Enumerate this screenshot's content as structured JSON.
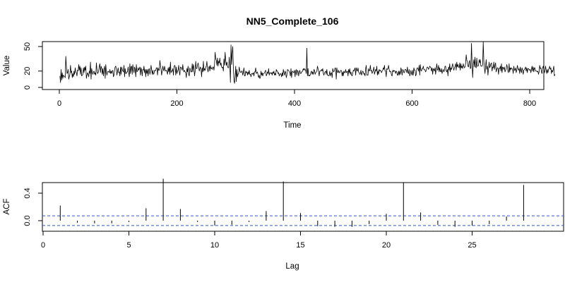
{
  "figure": {
    "title": "NN5_Complete_106"
  },
  "chart_data": [
    {
      "type": "line",
      "title": "NN5_Complete_106",
      "xlabel": "Time",
      "ylabel": "Value",
      "xlim": [
        1,
        791
      ],
      "ylim": [
        0,
        55
      ],
      "x_ticks": [
        0,
        200,
        400,
        600,
        800
      ],
      "y_ticks": [
        0,
        20,
        50
      ],
      "x_tick_labels": [
        "0",
        "200",
        "400",
        "600",
        "800"
      ],
      "y_tick_labels": [
        "0",
        "20",
        "50"
      ],
      "grid": false,
      "series": [
        {
          "x_start": 1,
          "x_step": 1,
          "values": [
            14,
            6,
            22,
            9,
            18,
            11,
            15,
            14,
            13,
            12,
            38,
            26,
            17,
            18,
            22,
            10,
            13,
            16,
            27,
            18,
            20,
            12,
            17,
            13,
            20,
            16,
            24,
            19,
            18,
            14,
            21,
            20,
            28,
            21,
            26,
            16,
            24,
            14,
            15,
            16,
            24,
            18,
            25,
            21,
            26,
            11,
            15,
            18,
            16,
            13,
            20,
            17,
            31,
            10,
            23,
            19,
            16,
            19,
            20,
            16,
            18,
            15,
            30,
            22,
            17,
            18,
            21,
            26,
            29,
            18,
            26,
            24,
            16,
            23,
            14,
            22,
            26,
            11,
            28,
            19,
            15,
            19,
            20,
            19,
            18,
            22,
            17,
            20,
            17,
            20,
            21,
            13,
            15,
            22,
            25,
            26,
            22,
            15,
            20,
            24,
            18,
            19,
            14,
            25,
            16,
            25,
            22,
            20,
            19,
            27,
            13,
            23,
            17,
            17,
            19,
            19,
            25,
            18,
            13,
            29,
            17,
            25,
            26,
            16,
            28,
            22,
            18,
            25,
            22,
            13,
            28,
            19,
            20,
            24,
            21,
            23,
            25,
            15,
            24,
            21,
            14,
            22,
            21,
            26,
            18,
            22,
            13,
            22,
            17,
            22,
            14,
            22,
            23,
            16,
            19,
            27,
            22,
            16,
            21,
            16,
            17,
            21,
            20,
            21,
            24,
            24,
            15,
            24,
            21,
            21,
            33,
            27,
            22,
            15,
            20,
            26,
            22,
            20,
            26,
            22,
            20,
            21,
            19,
            16,
            24,
            19,
            25,
            16,
            31,
            18,
            20,
            20,
            23,
            15,
            25,
            27,
            26,
            15,
            25,
            17,
            20,
            21,
            27,
            19,
            15,
            25,
            24,
            24,
            21,
            28,
            21,
            19,
            21,
            19,
            18,
            12,
            23,
            19,
            26,
            16,
            14,
            24,
            21,
            19,
            19,
            29,
            19,
            28,
            24,
            14,
            20,
            32,
            23,
            23,
            27,
            30,
            26,
            20,
            23,
            25,
            22,
            13,
            24,
            19,
            32,
            20,
            23,
            21,
            25,
            26,
            32,
            22,
            19,
            24,
            26,
            20,
            27,
            23,
            24,
            22,
            25,
            25,
            21,
            29,
            43,
            35,
            33,
            27,
            36,
            26,
            32,
            30,
            36,
            27,
            30,
            25,
            24,
            25,
            20,
            35,
            27,
            43,
            33,
            27,
            31,
            26,
            24,
            24,
            37,
            26,
            6,
            52,
            28,
            42,
            50,
            24,
            8,
            5,
            14,
            26,
            7,
            22,
            13,
            16,
            17,
            25,
            20,
            19,
            18,
            20,
            20,
            15,
            19,
            24,
            14,
            14,
            20,
            18,
            19,
            15,
            19,
            16,
            21,
            16,
            16,
            13,
            17,
            17,
            16,
            18,
            14,
            19,
            19,
            24,
            17,
            18,
            19,
            15,
            12,
            15,
            11,
            12,
            20,
            15,
            18,
            14,
            17,
            17,
            18,
            20,
            21,
            14,
            16,
            19,
            17,
            23,
            15,
            18,
            18,
            17,
            18,
            15,
            19,
            17,
            20,
            15,
            17,
            15,
            22,
            20,
            20,
            17,
            18,
            14,
            16,
            17,
            16,
            13,
            18,
            14,
            22,
            18,
            15,
            20,
            18,
            12,
            15,
            22,
            21,
            21,
            19,
            18,
            14,
            23,
            12,
            19,
            20,
            18,
            18,
            21,
            13,
            20,
            22,
            15,
            21,
            20,
            14,
            18,
            21,
            17,
            17,
            19,
            19,
            21,
            23,
            21,
            23,
            22,
            21,
            17,
            48,
            14,
            23,
            14,
            15,
            14,
            16,
            19,
            20,
            16,
            19,
            16,
            22,
            21,
            16,
            18,
            19,
            20,
            26,
            23,
            19,
            14,
            20,
            20,
            20,
            22,
            20,
            23,
            17,
            15,
            18,
            19,
            20,
            16,
            22,
            15,
            15,
            14,
            15,
            20,
            14,
            17,
            18,
            12,
            23,
            20,
            19,
            21,
            24,
            23,
            10,
            24,
            19,
            18,
            21,
            18,
            18,
            20,
            21,
            20,
            14,
            19,
            14,
            20,
            18,
            18,
            22,
            18,
            19,
            20,
            14,
            22,
            18,
            23,
            16,
            19,
            15,
            14,
            17,
            21,
            20,
            22,
            24,
            15,
            24,
            21,
            20,
            24,
            19,
            18,
            16,
            17,
            21,
            15,
            17,
            20,
            19,
            16,
            17,
            14,
            23,
            27,
            15,
            15,
            15,
            23,
            20,
            21,
            27,
            20,
            21,
            17,
            19,
            21,
            25,
            16,
            19,
            22,
            20,
            26,
            15,
            20,
            16,
            22,
            20,
            21,
            20,
            18,
            20,
            21,
            24,
            22,
            27,
            20,
            20,
            13,
            23,
            22,
            23,
            27,
            22,
            19,
            20,
            19,
            15,
            14,
            21,
            19,
            21,
            20,
            20,
            17,
            20,
            19,
            15,
            15,
            20,
            15,
            20,
            16,
            24,
            21,
            15,
            22,
            21,
            18,
            18,
            22,
            22,
            21,
            18,
            25,
            18,
            17,
            22,
            14,
            17,
            21,
            17,
            15,
            21,
            15,
            24,
            21,
            21,
            14,
            16,
            23,
            24,
            23,
            20,
            27,
            15,
            28,
            21,
            20,
            23,
            23,
            26,
            22,
            22,
            21,
            19,
            21,
            24,
            25,
            24,
            22,
            24,
            26,
            25,
            24,
            20,
            24,
            16,
            23,
            22,
            20,
            24,
            16,
            23,
            29,
            21,
            22,
            27,
            19,
            24,
            20,
            19,
            23,
            17,
            20,
            22,
            19,
            21,
            26,
            26,
            20,
            19,
            22,
            14,
            25,
            21,
            29,
            19,
            24,
            22,
            26,
            29,
            24,
            21,
            24,
            26,
            29,
            21,
            31,
            25,
            28,
            25,
            24,
            30,
            21,
            29,
            24,
            26,
            23,
            29,
            26,
            24,
            25,
            29,
            40,
            33,
            32,
            26,
            25,
            31,
            33,
            23,
            24,
            54,
            30,
            12,
            28,
            34,
            25,
            37,
            25,
            24,
            36,
            26,
            26,
            27,
            34,
            30,
            34,
            26,
            26,
            26,
            28,
            56,
            32,
            24,
            17,
            26,
            34,
            22,
            26,
            15,
            23,
            31,
            24,
            26,
            29,
            30,
            20,
            25,
            24,
            31,
            22,
            27,
            30,
            19,
            22,
            24,
            24,
            16,
            23,
            23,
            26,
            20,
            29,
            18,
            25,
            24,
            22,
            25,
            19,
            21,
            23,
            28,
            25,
            20,
            18,
            29,
            19,
            24,
            22,
            24,
            23,
            22,
            17,
            26,
            21,
            21,
            24,
            18,
            21,
            27,
            24,
            21,
            23,
            17,
            25,
            21,
            18,
            24,
            21,
            16,
            21,
            22,
            23,
            25,
            20,
            24,
            18,
            23,
            23,
            22,
            21,
            22,
            18,
            22,
            26,
            20,
            25,
            19,
            24,
            24,
            20,
            20,
            20,
            19,
            20,
            16,
            19,
            27,
            23,
            24,
            19,
            17,
            24,
            26,
            22,
            18,
            21,
            26,
            21,
            17,
            22,
            18,
            22,
            23,
            26,
            22,
            24,
            17,
            21,
            19,
            22,
            26,
            14,
            16
          ]
        }
      ]
    },
    {
      "type": "bar",
      "xlabel": "Lag",
      "ylabel": "ACF",
      "xlim": [
        0,
        29
      ],
      "ylim": [
        -0.15,
        0.65
      ],
      "x_ticks": [
        0,
        5,
        10,
        15,
        20,
        25
      ],
      "y_ticks": [
        0.0,
        0.4
      ],
      "x_tick_labels": [
        "0",
        "5",
        "10",
        "15",
        "20",
        "25"
      ],
      "y_tick_labels": [
        "0.0",
        "0.4"
      ],
      "grid": false,
      "confidence_band": [
        -0.07,
        0.07
      ],
      "lags": [
        1,
        2,
        3,
        4,
        5,
        6,
        7,
        8,
        9,
        10,
        11,
        12,
        13,
        14,
        15,
        16,
        17,
        18,
        19,
        20,
        21,
        22,
        23,
        24,
        25,
        26,
        27,
        28
      ],
      "values": [
        0.22,
        -0.03,
        -0.04,
        -0.04,
        -0.02,
        0.18,
        0.61,
        0.17,
        -0.02,
        -0.07,
        -0.06,
        -0.02,
        0.14,
        0.57,
        0.11,
        -0.08,
        -0.09,
        -0.09,
        -0.05,
        0.1,
        0.55,
        0.12,
        -0.06,
        -0.09,
        -0.07,
        -0.05,
        0.06,
        0.52
      ]
    }
  ]
}
